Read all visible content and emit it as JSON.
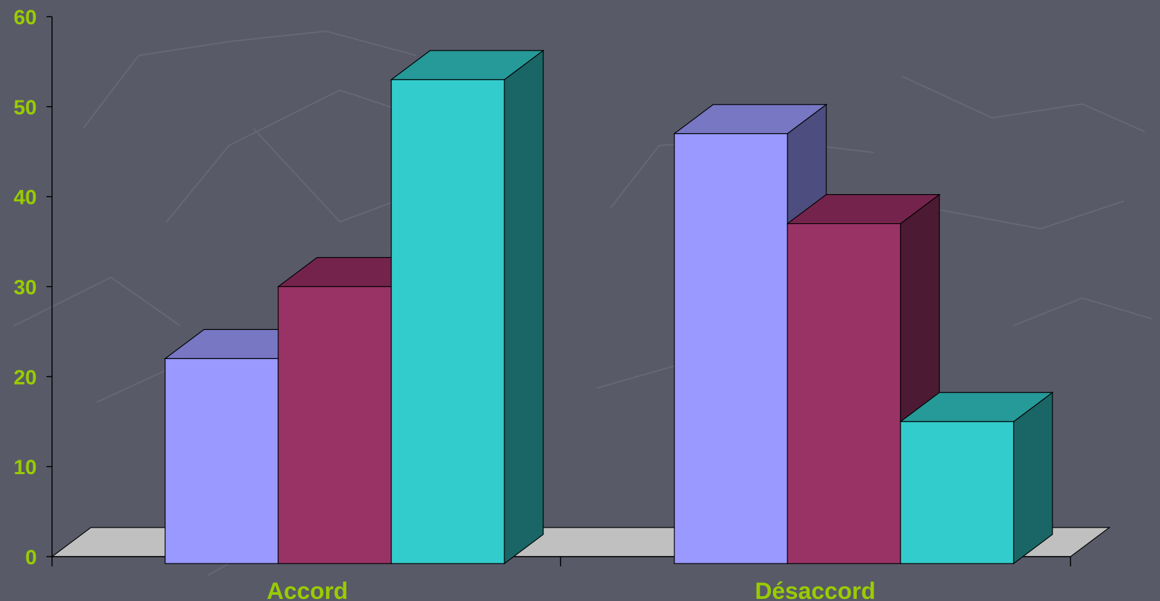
{
  "chart_data": {
    "type": "bar",
    "three_d": true,
    "categories": [
      "Accord",
      "Désaccord"
    ],
    "series": [
      {
        "values": [
          22,
          47
        ],
        "front_color": "#9999ff",
        "top_color": "#7777c4",
        "side_color": "#4d4d80"
      },
      {
        "values": [
          30,
          37
        ],
        "front_color": "#993366",
        "top_color": "#74244c",
        "side_color": "#4d1a33"
      },
      {
        "values": [
          53,
          15
        ],
        "front_color": "#33cccc",
        "top_color": "#269999",
        "side_color": "#1a6666"
      }
    ],
    "y_ticks": [
      "0",
      "10",
      "20",
      "30",
      "40",
      "50",
      "60"
    ],
    "ylim": [
      0,
      60
    ],
    "grid": false,
    "floor_color": "#c0c0c0",
    "tick_label_color": "#99cc00",
    "background_color": "#585a68"
  }
}
